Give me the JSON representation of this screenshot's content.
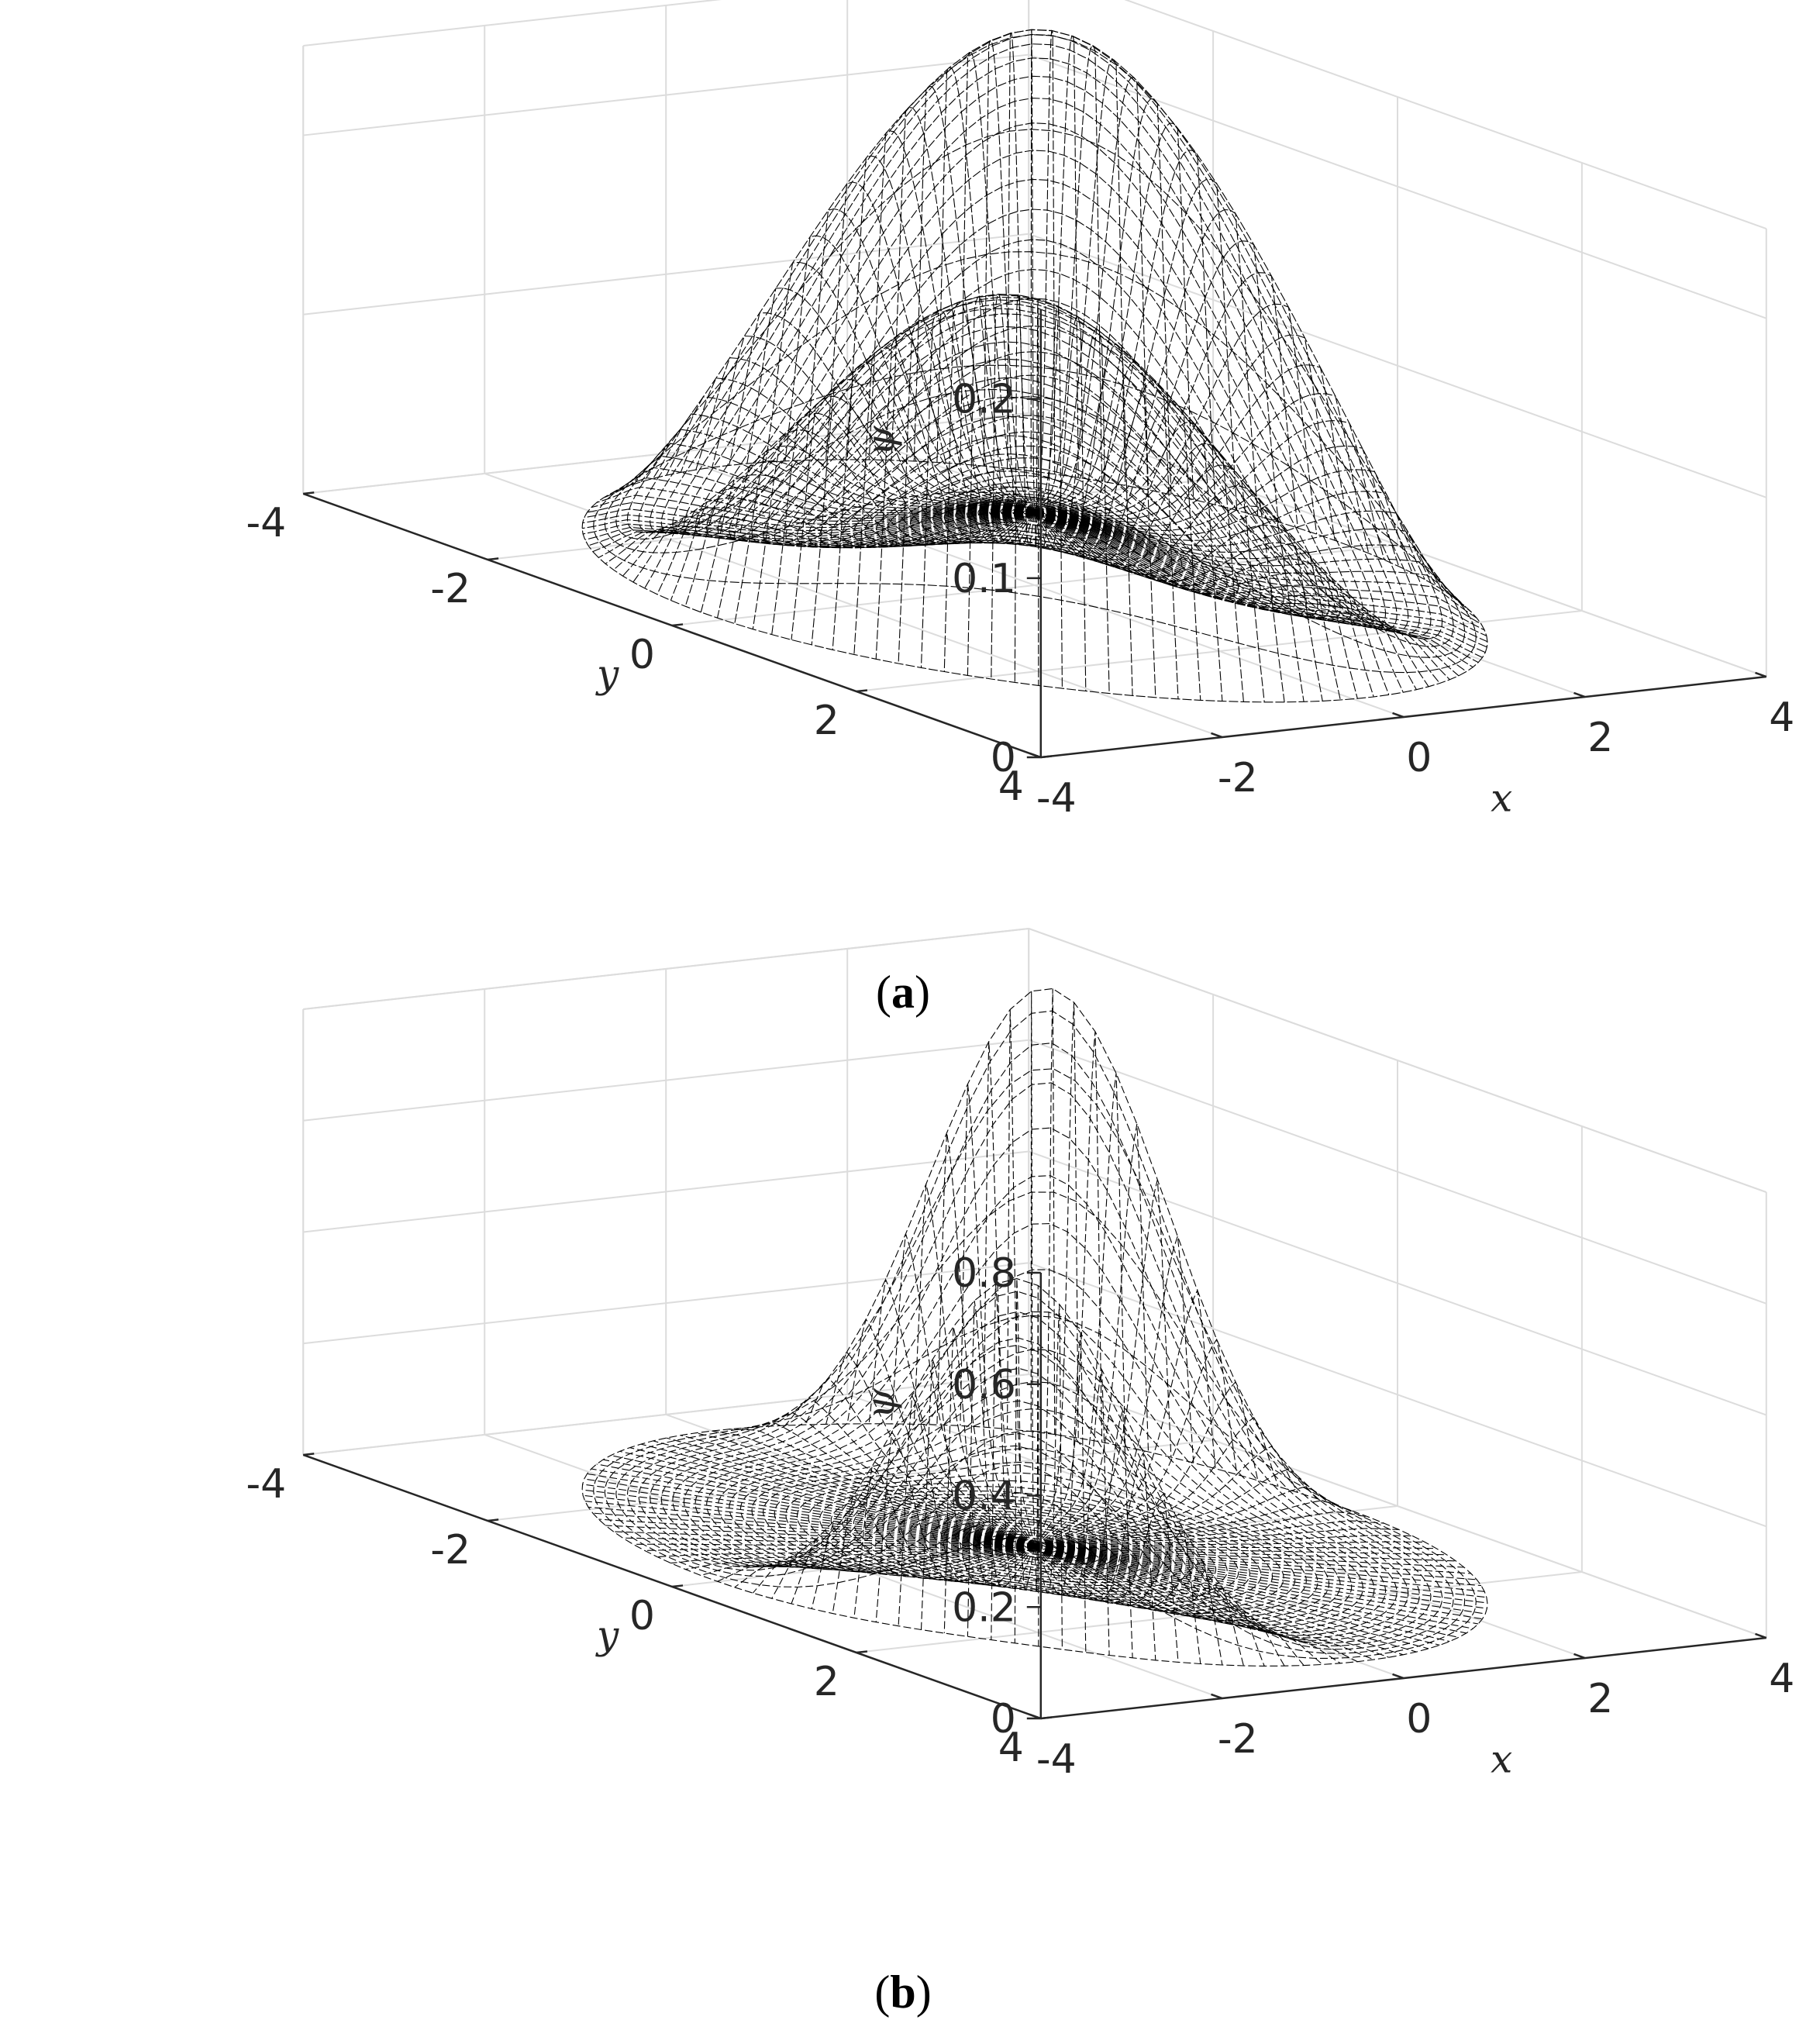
{
  "chart_data": [
    {
      "type": "surface",
      "panel_label": "a",
      "xlabel": "x",
      "ylabel": "y",
      "zlabel": "ψ",
      "xlim": [
        -4,
        4
      ],
      "ylim": [
        -4,
        4
      ],
      "zlim": [
        0,
        0.25
      ],
      "xticks": [
        -4,
        -2,
        0,
        2,
        4
      ],
      "yticks": [
        -4,
        -2,
        0,
        2,
        4
      ],
      "zticks": [
        0,
        0.1,
        0.2
      ],
      "xtick_labels": [
        "-4",
        "-2",
        "0",
        "2",
        "4"
      ],
      "ytick_labels": [
        "-4",
        "-2",
        "0",
        "2",
        "4"
      ],
      "ztick_labels": [
        "0",
        "0.1",
        "0.2"
      ],
      "domain": "disk of radius 3.5",
      "grid": true,
      "mesh": "black wireframe",
      "peaks": [
        {
          "x": -2.2,
          "y": 2.0,
          "z": 0.21
        },
        {
          "x": 2.2,
          "y": -2.0,
          "z": 0.26
        }
      ],
      "center_value": 0.04
    },
    {
      "type": "surface",
      "panel_label": "b",
      "xlabel": "x",
      "ylabel": "y",
      "zlabel": "ψ",
      "xlim": [
        -4,
        4
      ],
      "ylim": [
        -4,
        4
      ],
      "zlim": [
        0,
        0.8
      ],
      "xticks": [
        -4,
        -2,
        0,
        2,
        4
      ],
      "yticks": [
        -4,
        -2,
        0,
        2,
        4
      ],
      "zticks": [
        0,
        0.2,
        0.4,
        0.6,
        0.8
      ],
      "xtick_labels": [
        "-4",
        "-2",
        "0",
        "2",
        "4"
      ],
      "ytick_labels": [
        "-4",
        "-2",
        "0",
        "2",
        "4"
      ],
      "ztick_labels": [
        "0",
        "0.2",
        "0.4",
        "0.6",
        "0.8"
      ],
      "domain": "disk of radius 3.5",
      "grid": true,
      "mesh": "black wireframe",
      "peaks": [
        {
          "x": -2.4,
          "y": 2.2,
          "z": 0.66
        },
        {
          "x": 2.4,
          "y": -2.2,
          "z": 0.85
        }
      ],
      "center_value": 0.0
    }
  ]
}
